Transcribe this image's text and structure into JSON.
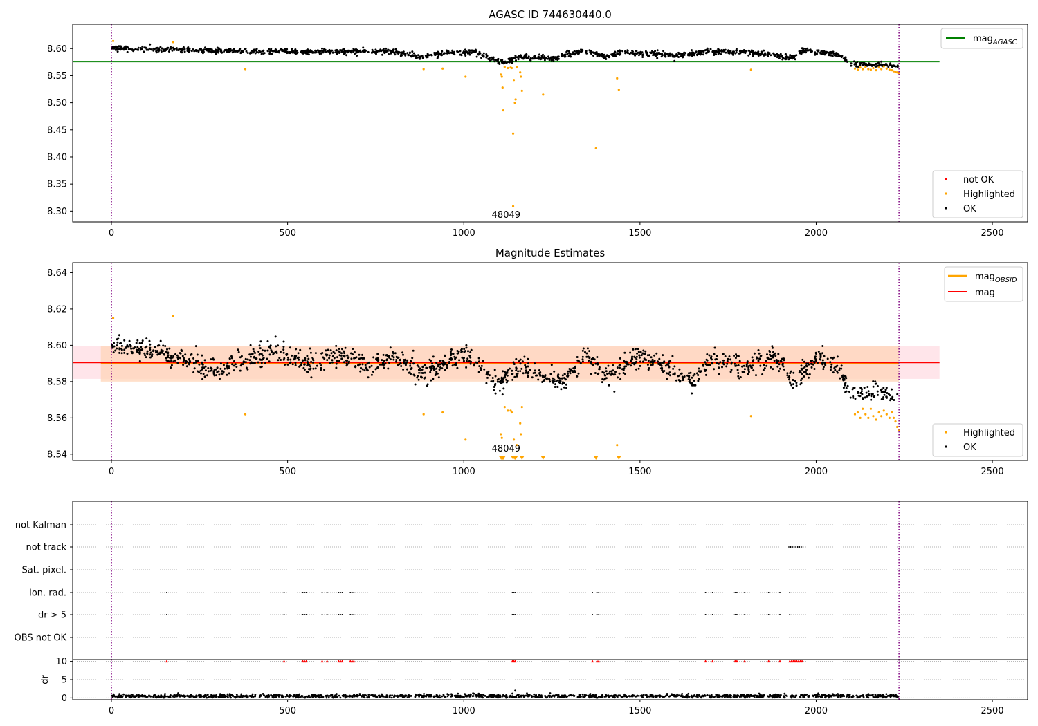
{
  "chart_data": [
    {
      "type": "scatter",
      "title": "AGASC ID 744630440.0",
      "xlabel": "",
      "ylabel": "",
      "xlim": [
        -110,
        2600
      ],
      "ylim": [
        8.28,
        8.645
      ],
      "x_ticks": [
        0,
        500,
        1000,
        1500,
        2000,
        2500
      ],
      "x_tick_labels": [
        "0",
        "500",
        "1000",
        "1500",
        "2000",
        "2500"
      ],
      "y_ticks": [
        8.3,
        8.35,
        8.4,
        8.45,
        8.5,
        8.55,
        8.6
      ],
      "y_tick_labels": [
        "8.30",
        "8.35",
        "8.40",
        "8.45",
        "8.50",
        "8.55",
        "8.60"
      ],
      "vlines": [
        0,
        2235
      ],
      "annotation": {
        "text": "48049",
        "x": 1120,
        "y": 8.285
      },
      "reference_line": {
        "name": "mag_AGASC",
        "value": 8.576,
        "x_range": [
          -110,
          2350
        ]
      },
      "ok_model": {
        "segments": [
          [
            0,
            8.601
          ],
          [
            300,
            8.596
          ],
          [
            600,
            8.594
          ],
          [
            800,
            8.595
          ],
          [
            880,
            8.584
          ],
          [
            950,
            8.593
          ],
          [
            1030,
            8.593
          ],
          [
            1080,
            8.58
          ],
          [
            1120,
            8.575
          ],
          [
            1160,
            8.585
          ],
          [
            1250,
            8.582
          ],
          [
            1340,
            8.596
          ],
          [
            1400,
            8.585
          ],
          [
            1450,
            8.594
          ],
          [
            1600,
            8.587
          ],
          [
            1700,
            8.595
          ],
          [
            1820,
            8.593
          ],
          [
            1940,
            8.583
          ],
          [
            1960,
            8.597
          ],
          [
            2060,
            8.59
          ],
          [
            2100,
            8.571
          ],
          [
            2235,
            8.568
          ]
        ],
        "noise": 0.0045,
        "count": 1500,
        "gap": [
          1945,
          1952
        ]
      },
      "highlighted_points": [
        [
          5,
          8.614
        ],
        [
          175,
          8.612
        ],
        [
          380,
          8.562
        ],
        [
          886,
          8.562
        ],
        [
          940,
          8.563
        ],
        [
          1005,
          8.548
        ],
        [
          1105,
          8.552
        ],
        [
          1108,
          8.548
        ],
        [
          1110,
          8.528
        ],
        [
          1112,
          8.486
        ],
        [
          1116,
          8.566
        ],
        [
          1125,
          8.564
        ],
        [
          1133,
          8.565
        ],
        [
          1136,
          8.564
        ],
        [
          1140,
          8.443
        ],
        [
          1142,
          8.542
        ],
        [
          1145,
          8.5
        ],
        [
          1147,
          8.506
        ],
        [
          1150,
          8.566
        ],
        [
          1160,
          8.556
        ],
        [
          1162,
          8.548
        ],
        [
          1165,
          8.522
        ],
        [
          1225,
          8.515
        ],
        [
          1375,
          8.416
        ],
        [
          1435,
          8.545
        ],
        [
          1440,
          8.524
        ],
        [
          1815,
          8.561
        ],
        [
          2110,
          8.563
        ],
        [
          2118,
          8.561
        ],
        [
          2125,
          8.565
        ],
        [
          2132,
          8.562
        ],
        [
          2140,
          8.566
        ],
        [
          2148,
          8.562
        ],
        [
          2155,
          8.561
        ],
        [
          2162,
          8.564
        ],
        [
          2170,
          8.56
        ],
        [
          2178,
          8.565
        ],
        [
          2185,
          8.562
        ],
        [
          2192,
          8.567
        ],
        [
          2200,
          8.563
        ],
        [
          2208,
          8.561
        ],
        [
          2215,
          8.56
        ],
        [
          2220,
          8.558
        ],
        [
          2225,
          8.557
        ],
        [
          2230,
          8.556
        ],
        [
          2234,
          8.555
        ],
        [
          1140,
          8.309
        ]
      ],
      "legends": [
        {
          "position": "upper-right",
          "entries": [
            {
              "label_main": "mag",
              "label_sub": "AGASC",
              "color": "#008000",
              "marker": "line"
            }
          ]
        },
        {
          "position": "lower-right",
          "entries": [
            {
              "label": "not OK",
              "color": "#ff0000",
              "marker": "dot"
            },
            {
              "label": "Highlighted",
              "color": "#ffa500",
              "marker": "dot"
            },
            {
              "label": "OK",
              "color": "#000000",
              "marker": "dot"
            }
          ]
        }
      ],
      "colors": {
        "ok": "#000000",
        "highlighted": "#ffa500",
        "not_ok": "#ff0000",
        "reference": "#008000",
        "vline": "#800080"
      }
    },
    {
      "type": "scatter",
      "title": "Magnitude Estimates",
      "xlabel": "",
      "ylabel": "",
      "xlim": [
        -110,
        2600
      ],
      "ylim": [
        8.5365,
        8.6455
      ],
      "x_ticks": [
        0,
        500,
        1000,
        1500,
        2000,
        2500
      ],
      "x_tick_labels": [
        "0",
        "500",
        "1000",
        "1500",
        "2000",
        "2500"
      ],
      "y_ticks": [
        8.54,
        8.56,
        8.58,
        8.6,
        8.62,
        8.64
      ],
      "y_tick_labels": [
        "8.54",
        "8.56",
        "8.58",
        "8.60",
        "8.62",
        "8.64"
      ],
      "vlines": [
        0,
        2235
      ],
      "annotation": {
        "text": "48049",
        "x": 1120,
        "y": 8.5415
      },
      "mag_line": {
        "name": "mag",
        "value": 8.5905,
        "band": [
          8.5815,
          8.5995
        ],
        "x_range": [
          -110,
          2350
        ]
      },
      "mag_obsid": {
        "name": "mag_OBSID",
        "value": 8.59,
        "band": [
          8.58,
          8.5995
        ],
        "x_range": [
          -30,
          2235
        ]
      },
      "ok_model": {
        "segments": [
          [
            0,
            8.6
          ],
          [
            150,
            8.596
          ],
          [
            300,
            8.586
          ],
          [
            460,
            8.598
          ],
          [
            550,
            8.59
          ],
          [
            650,
            8.595
          ],
          [
            720,
            8.587
          ],
          [
            800,
            8.594
          ],
          [
            880,
            8.585
          ],
          [
            940,
            8.59
          ],
          [
            1000,
            8.596
          ],
          [
            1050,
            8.588
          ],
          [
            1100,
            8.578
          ],
          [
            1130,
            8.585
          ],
          [
            1170,
            8.588
          ],
          [
            1230,
            8.582
          ],
          [
            1280,
            8.58
          ],
          [
            1350,
            8.596
          ],
          [
            1400,
            8.582
          ],
          [
            1500,
            8.594
          ],
          [
            1600,
            8.584
          ],
          [
            1650,
            8.58
          ],
          [
            1700,
            8.593
          ],
          [
            1800,
            8.588
          ],
          [
            1880,
            8.594
          ],
          [
            1940,
            8.58
          ],
          [
            2000,
            8.594
          ],
          [
            2060,
            8.588
          ],
          [
            2100,
            8.573
          ],
          [
            2200,
            8.572
          ],
          [
            2235,
            8.568
          ]
        ],
        "noise": 0.0055,
        "count": 1500,
        "gap": [
          1945,
          1952
        ]
      },
      "highlighted_points": [
        [
          5,
          8.615
        ],
        [
          175,
          8.616
        ],
        [
          380,
          8.562
        ],
        [
          886,
          8.562
        ],
        [
          940,
          8.563
        ],
        [
          1005,
          8.548
        ],
        [
          1105,
          8.551
        ],
        [
          1108,
          8.549
        ],
        [
          1116,
          8.566
        ],
        [
          1125,
          8.564
        ],
        [
          1133,
          8.564
        ],
        [
          1136,
          8.563
        ],
        [
          1142,
          8.548
        ],
        [
          1150,
          8.545
        ],
        [
          1160,
          8.557
        ],
        [
          1162,
          8.551
        ],
        [
          1165,
          8.566
        ],
        [
          1435,
          8.545
        ],
        [
          1815,
          8.561
        ],
        [
          2110,
          8.562
        ],
        [
          2118,
          8.563
        ],
        [
          2125,
          8.56
        ],
        [
          2132,
          8.565
        ],
        [
          2140,
          8.562
        ],
        [
          2148,
          8.56
        ],
        [
          2155,
          8.565
        ],
        [
          2162,
          8.561
        ],
        [
          2170,
          8.559
        ],
        [
          2178,
          8.563
        ],
        [
          2185,
          8.561
        ],
        [
          2192,
          8.564
        ],
        [
          2200,
          8.562
        ],
        [
          2208,
          8.56
        ],
        [
          2215,
          8.563
        ],
        [
          2220,
          8.56
        ],
        [
          2225,
          8.558
        ],
        [
          2230,
          8.555
        ],
        [
          2234,
          8.553
        ]
      ],
      "clipped_points": [
        1106,
        1110,
        1112,
        1140,
        1145,
        1147,
        1165,
        1225,
        1375,
        1440
      ],
      "legends": [
        {
          "position": "upper-right",
          "entries": [
            {
              "label_main": "mag",
              "label_sub": "OBSID",
              "color": "#ffa500",
              "marker": "line"
            },
            {
              "label": "mag",
              "color": "#ff0000",
              "marker": "line"
            }
          ]
        },
        {
          "position": "lower-right",
          "entries": [
            {
              "label": "Highlighted",
              "color": "#ffa500",
              "marker": "dot"
            },
            {
              "label": "OK",
              "color": "#000000",
              "marker": "dot"
            }
          ]
        }
      ],
      "colors": {
        "ok": "#000000",
        "highlighted": "#ffa500",
        "mag": "#ff0000",
        "mag_band": "#ffe0e6",
        "obsid": "#ffa500",
        "obsid_band": "#ffd4b8",
        "vline": "#800080"
      }
    },
    {
      "type": "scatter",
      "title": "",
      "xlabel": "",
      "ylabel": "",
      "xlim": [
        -110,
        2600
      ],
      "vlines": [
        0,
        2235
      ],
      "flag_rows": [
        "not Kalman",
        "not track",
        "Sat. pixel.",
        "Ion. rad.",
        "dr > 5",
        "OBS not OK"
      ],
      "flag_points": {
        "not Kalman": [],
        "not track": [
          1925,
          1930,
          1935,
          1940,
          1945,
          1950,
          1955,
          1960
        ],
        "Sat. pixel.": [],
        "Ion. rad.": [
          157,
          490,
          543,
          548,
          553,
          598,
          612,
          645,
          650,
          655,
          678,
          683,
          688,
          1138,
          1142,
          1146,
          1365,
          1378,
          1383,
          1686,
          1706,
          1770,
          1775,
          1797,
          1865,
          1897,
          1925
        ],
        "dr > 5": [
          157,
          490,
          543,
          548,
          553,
          598,
          612,
          645,
          650,
          655,
          678,
          683,
          688,
          1138,
          1142,
          1146,
          1365,
          1378,
          1383,
          1686,
          1706,
          1770,
          1775,
          1797,
          1865,
          1897,
          1925
        ],
        "OBS not OK": []
      },
      "colors": {
        "flag": "#000000",
        "vline": "#800080",
        "grid": "#b0b0b0"
      }
    },
    {
      "type": "scatter",
      "title": "",
      "xlabel": "",
      "ylabel": "dr",
      "xlim": [
        -110,
        2600
      ],
      "ylim": [
        -0.5,
        10.5
      ],
      "x_ticks": [
        0,
        500,
        1000,
        1500,
        2000,
        2500
      ],
      "x_tick_labels": [
        "0",
        "500",
        "1000",
        "1500",
        "2000",
        "2500"
      ],
      "y_ticks": [
        0,
        5,
        10
      ],
      "y_tick_labels": [
        "0",
        "5",
        "10"
      ],
      "vlines": [
        0,
        2235
      ],
      "dr_model": {
        "base": 0.5,
        "noise": 0.25,
        "count": 1400,
        "gap": [
          1945,
          1952
        ]
      },
      "outlier_points": [
        [
          1146,
          2.0
        ],
        [
          1138,
          1.2
        ]
      ],
      "clipped_red_points": [
        157,
        490,
        543,
        548,
        553,
        598,
        612,
        645,
        650,
        655,
        678,
        683,
        688,
        1138,
        1142,
        1146,
        1365,
        1378,
        1383,
        1686,
        1706,
        1770,
        1775,
        1797,
        1865,
        1897,
        1925,
        1930,
        1935,
        1940,
        1945,
        1950,
        1955,
        1960
      ],
      "colors": {
        "ok": "#000000",
        "clipped": "#ff0000",
        "vline": "#800080",
        "grid": "#b0b0b0"
      }
    }
  ]
}
